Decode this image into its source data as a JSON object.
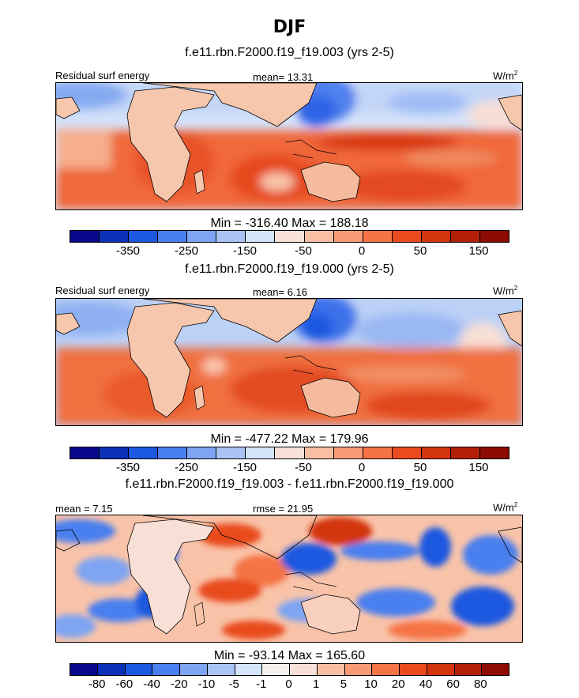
{
  "figure": {
    "season": "DJF"
  },
  "panels": [
    {
      "title": "f.e11.rbn.F2000.f19_f19.003 (yrs 2-5)",
      "left_label": "Residual surf energy",
      "center_label": "mean=  13.31",
      "units_base": "W/m",
      "units_exp": "2",
      "minmax": "Min = -316.40 Max = 188.18",
      "colorbar": {
        "colors": [
          "#08088a",
          "#0b31b8",
          "#1d58e0",
          "#4a7fef",
          "#7ea4f2",
          "#aac4f5",
          "#d3e4fb",
          "#f7e0d8",
          "#f9bfa5",
          "#f89a75",
          "#f57345",
          "#e94b1e",
          "#d3350e",
          "#b22008",
          "#8c0b05"
        ],
        "tick_labels": [
          "-350",
          "-250",
          "-150",
          "-50",
          "0",
          "50",
          "150"
        ]
      }
    },
    {
      "title": "f.e11.rbn.F2000.f19_f19.000 (yrs 2-5)",
      "left_label": "Residual surf energy",
      "center_label": "mean=  6.16",
      "units_base": "W/m",
      "units_exp": "2",
      "minmax": "Min = -477.22 Max = 179.96",
      "colorbar": {
        "colors": [
          "#08088a",
          "#0b31b8",
          "#1d58e0",
          "#4a7fef",
          "#7ea4f2",
          "#aac4f5",
          "#d3e4fb",
          "#f7e0d8",
          "#f9bfa5",
          "#f89a75",
          "#f57345",
          "#e94b1e",
          "#d3350e",
          "#b22008",
          "#8c0b05"
        ],
        "tick_labels": [
          "-350",
          "-250",
          "-150",
          "-50",
          "0",
          "50",
          "150"
        ]
      }
    },
    {
      "title": "f.e11.rbn.F2000.f19_f19.003 - f.e11.rbn.F2000.f19_f19.000",
      "left_label": "mean =   7.15",
      "center_label": "rmse =  21.95",
      "units_base": "W/m",
      "units_exp": "2",
      "minmax": "Min = -93.14 Max = 165.60",
      "colorbar": {
        "colors": [
          "#08088a",
          "#0b31b8",
          "#1d58e0",
          "#4a7fef",
          "#7ea4f2",
          "#aac4f5",
          "#d3e4fb",
          "#f4f1ef",
          "#f7e0d8",
          "#f9bfa5",
          "#f89a75",
          "#f57345",
          "#e94b1e",
          "#d3350e",
          "#b22008",
          "#8c0b05"
        ],
        "tick_labels": [
          "-80",
          "-60",
          "-40",
          "-20",
          "-10",
          "-5",
          "-1",
          "0",
          "1",
          "5",
          "10",
          "20",
          "40",
          "60",
          "80"
        ]
      }
    }
  ]
}
